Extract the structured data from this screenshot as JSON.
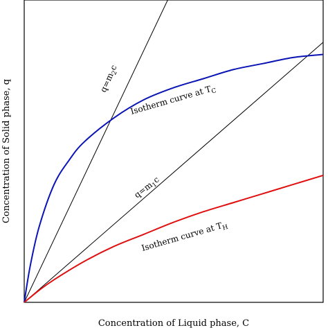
{
  "chart_data": {
    "type": "line",
    "xlabel": "Concentration of Liquid phase, C",
    "ylabel": "Concentration of Solid phase, q",
    "xlim": [
      0,
      1
    ],
    "ylim": [
      0,
      1
    ],
    "grid": false,
    "legend": "none",
    "series": [
      {
        "name": "q=m₂c",
        "color": "#000000",
        "x": [
          0,
          0.48
        ],
        "y": [
          0,
          1.0
        ]
      },
      {
        "name": "q=m₁c",
        "color": "#000000",
        "x": [
          0,
          1.0
        ],
        "y": [
          0,
          0.86
        ]
      },
      {
        "name": "Isotherm curve at T_c",
        "color": "#0a14b4",
        "x": [
          0,
          0.02,
          0.05,
          0.1,
          0.15,
          0.2,
          0.3,
          0.4,
          0.5,
          0.6,
          0.7,
          0.8,
          0.9,
          1.0
        ],
        "y": [
          0,
          0.12,
          0.25,
          0.39,
          0.47,
          0.53,
          0.61,
          0.67,
          0.71,
          0.74,
          0.77,
          0.79,
          0.81,
          0.82
        ]
      },
      {
        "name": "Isotherm curve at T_H",
        "color": "#e01010",
        "x": [
          0,
          0.05,
          0.1,
          0.2,
          0.3,
          0.4,
          0.5,
          0.6,
          0.7,
          0.8,
          0.9,
          1.0
        ],
        "y": [
          0,
          0.04,
          0.075,
          0.135,
          0.185,
          0.225,
          0.265,
          0.3,
          0.33,
          0.36,
          0.39,
          0.42
        ]
      }
    ],
    "annotations": {
      "m2": {
        "prefix": "q=m",
        "sub": "2",
        "suffix": "c"
      },
      "m1": {
        "prefix": "q=m",
        "sub": "1",
        "suffix": "c"
      },
      "tc": {
        "prefix": "Isotherm curve at T",
        "sub": "C"
      },
      "th": {
        "prefix": "Isotherm curve at T",
        "sub": "H"
      }
    }
  }
}
